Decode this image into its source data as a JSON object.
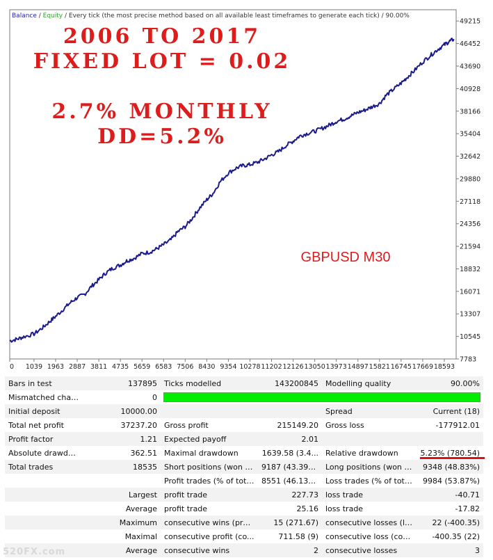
{
  "chart_data": {
    "type": "line",
    "header_labels": [
      "Balance",
      "/",
      "Equity",
      "/",
      "Every tick (the most precise method based on all available least timeframes to generate each tick)",
      "/",
      "90.00%"
    ],
    "header_colors": [
      "#1f1fbf",
      "#333333",
      "#2aa52a",
      "#333333",
      "#333333",
      "#333333",
      "#333333"
    ],
    "annotations": [
      "2006 TO 2017",
      "FIXED LOT = 0.02",
      "2.7% MONTHLY",
      "DD=5.2%",
      "GBPUSD M30"
    ],
    "annotation_color": "#dd1c1c",
    "line_color": "#1a1a8c",
    "x_ticks": [
      0,
      1039,
      1963,
      2887,
      3811,
      4735,
      5659,
      6583,
      7506,
      8430,
      9354,
      10278,
      11202,
      12126,
      13050,
      13973,
      14897,
      15821,
      16745,
      17669,
      18593
    ],
    "y_ticks": [
      7783,
      10545,
      13307,
      16071,
      18832,
      21594,
      24356,
      27118,
      29880,
      32642,
      35404,
      38166,
      40928,
      43690,
      46452,
      49215
    ],
    "xlim": [
      0,
      19100
    ],
    "ylim": [
      7783,
      50600
    ],
    "series": [
      {
        "x": [
          0,
          300,
          600,
          1039,
          1400,
          1700,
          1963,
          2300,
          2600,
          2887,
          3200,
          3500,
          3811,
          4100,
          4400,
          4735,
          5000,
          5300,
          5659,
          6000,
          6300,
          6583,
          6900,
          7200,
          7506,
          7800,
          8100,
          8430,
          8700,
          9000,
          9354,
          9700,
          10000,
          10278,
          10600,
          10900,
          11202,
          11500,
          11800,
          12126,
          12400,
          12700,
          13050,
          13400,
          13700,
          13973,
          14300,
          14600,
          14897,
          15200,
          15500,
          15821,
          16100,
          16400,
          16745,
          17000,
          17300,
          17669,
          18000,
          18300,
          18593,
          18800,
          19000
        ],
        "y": [
          10000,
          10200,
          10500,
          10850,
          11600,
          12350,
          13000,
          13900,
          14700,
          15300,
          15700,
          16700,
          17500,
          18300,
          18900,
          19300,
          19800,
          20100,
          20700,
          20900,
          21300,
          21800,
          22400,
          23400,
          24000,
          25000,
          26200,
          27300,
          28100,
          29500,
          30600,
          31200,
          31500,
          31600,
          31900,
          32300,
          32800,
          33200,
          33900,
          34500,
          35100,
          35400,
          35700,
          36100,
          36500,
          36900,
          37200,
          37600,
          38000,
          38300,
          38700,
          39100,
          40100,
          40800,
          41600,
          42300,
          43100,
          44200,
          45000,
          45700,
          46300,
          46700,
          47000
        ]
      }
    ]
  },
  "stats": {
    "row1": [
      "Bars in test",
      "137895",
      "Ticks modelled",
      "143200845",
      "Modelling quality",
      "90.00%"
    ],
    "row2": [
      "Mismatched chart...",
      "0"
    ],
    "row3": [
      "Initial deposit",
      "10000.00",
      "Spread",
      "Current (18)"
    ],
    "row4": [
      "Total net profit",
      "37237.20",
      "Gross profit",
      "215149.20",
      "Gross loss",
      "-177912.01"
    ],
    "row5": [
      "Profit factor",
      "1.21",
      "Expected payoff",
      "2.01"
    ],
    "row6": [
      "Absolute drawdown",
      "362.51",
      "Maximal drawdown",
      "1639.58 (3.4...",
      "Relative drawdown",
      "5.23% (780.54)"
    ],
    "row7": [
      "Total trades",
      "18535",
      "Short positions (won %)",
      "9187 (43.39%)",
      "Long positions (won %)",
      "9348 (48.83%)"
    ],
    "row8": [
      "Profit trades (% of total)",
      "8551 (46.13%)",
      "Loss trades (% of total)",
      "9984 (53.87%)"
    ],
    "row9": [
      "Largest",
      "profit trade",
      "227.73",
      "loss trade",
      "-40.71"
    ],
    "row10": [
      "Average",
      "profit trade",
      "25.16",
      "loss trade",
      "-17.82"
    ],
    "row11": [
      "Maximum",
      "consecutive wins (prof...",
      "15 (271.67)",
      "consecutive losses (los...",
      "22 (-400.35)"
    ],
    "row12": [
      "Maximal",
      "consecutive profit (co...",
      "711.58 (9)",
      "consecutive loss (coun...",
      "-400.35 (22)"
    ],
    "row13": [
      "Average",
      "consecutive wins",
      "2",
      "consecutive losses",
      "3"
    ]
  },
  "modelling_bar_color": "#00ee00",
  "watermark": "520FX.com"
}
